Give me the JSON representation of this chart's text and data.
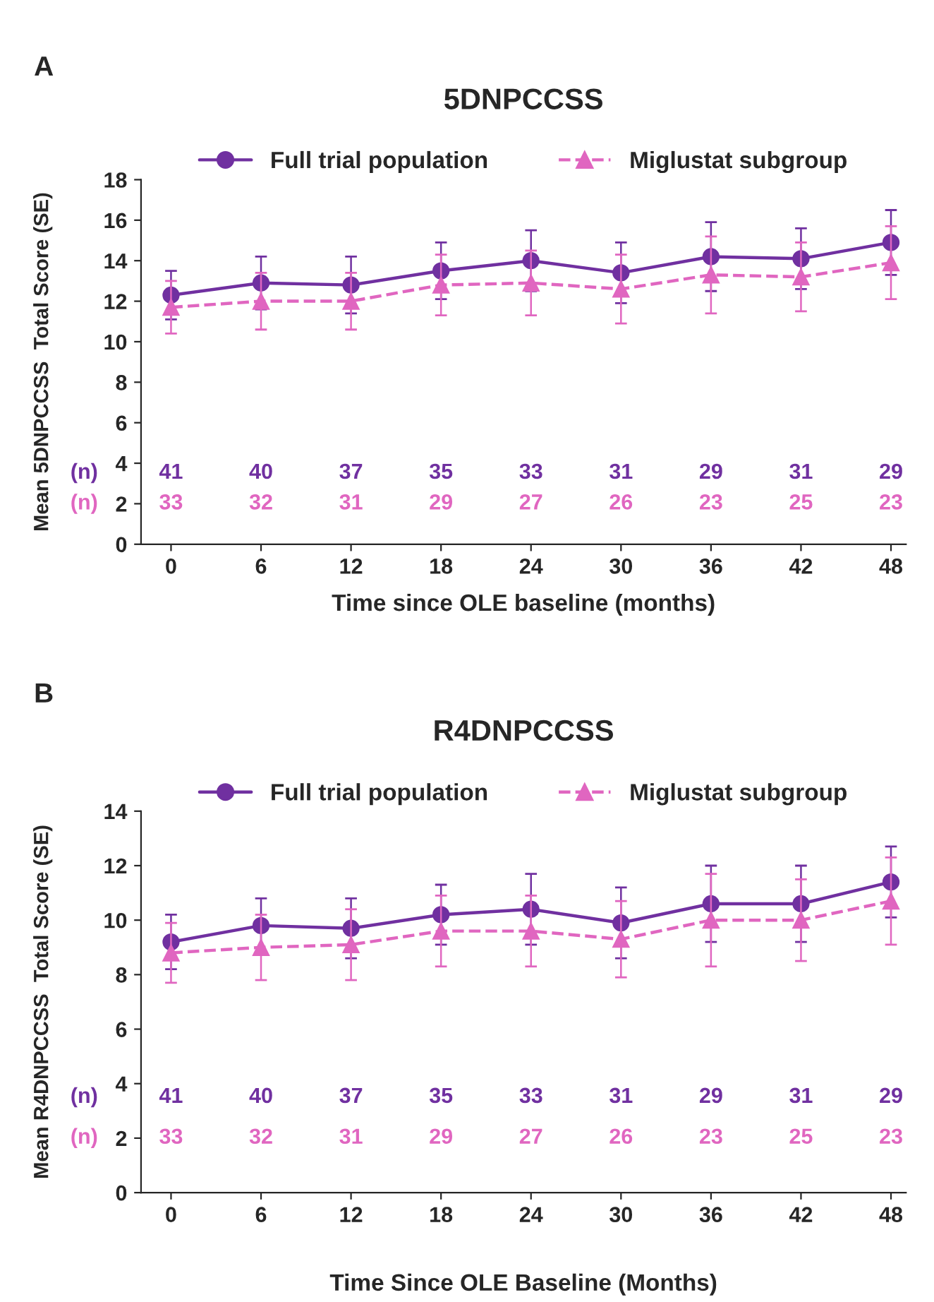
{
  "chart_data": [
    {
      "type": "line",
      "title": "5DNPCCSS",
      "xlabel": "Time since OLE baseline (months)",
      "ylabel": "Mean 5DNPCCSS  Total Score (SE)",
      "x": [
        0,
        6,
        12,
        18,
        24,
        30,
        36,
        42,
        48
      ],
      "series": [
        {
          "name": "Full trial population",
          "color": "#7030a0",
          "marker": "circle",
          "line_style": "solid",
          "values": [
            12.3,
            12.9,
            12.8,
            13.5,
            14.0,
            13.4,
            14.2,
            14.1,
            14.9
          ],
          "errors": [
            1.2,
            1.3,
            1.4,
            1.4,
            1.5,
            1.5,
            1.7,
            1.5,
            1.6
          ]
        },
        {
          "name": "Miglustat subgroup",
          "color": "#e066c0",
          "marker": "triangle",
          "line_style": "dashed",
          "values": [
            11.7,
            12.0,
            12.0,
            12.8,
            12.9,
            12.6,
            13.3,
            13.2,
            13.9
          ],
          "errors": [
            1.3,
            1.4,
            1.4,
            1.5,
            1.6,
            1.7,
            1.9,
            1.7,
            1.8
          ]
        }
      ],
      "xlim": [
        -2,
        49
      ],
      "xticks": [
        0,
        6,
        12,
        18,
        24,
        30,
        36,
        42,
        48
      ],
      "ylim": [
        0,
        18
      ],
      "yticks": [
        0,
        2,
        4,
        6,
        8,
        10,
        12,
        14,
        16,
        18
      ],
      "grid": false,
      "legend": "top",
      "annotations": [
        "A",
        "(n)",
        "41",
        "40",
        "37",
        "35",
        "33",
        "31",
        "29",
        "31",
        "29",
        "(n)",
        "33",
        "32",
        "31",
        "29",
        "27",
        "26",
        "23",
        "25",
        "23"
      ]
    },
    {
      "type": "line",
      "title": "R4DNPCCSS",
      "xlabel": "Time Since OLE Baseline (Months)",
      "ylabel": "Mean R4DNPCCSS  Total Score (SE)",
      "x": [
        0,
        6,
        12,
        18,
        24,
        30,
        36,
        42,
        48
      ],
      "series": [
        {
          "name": "Full trial population",
          "color": "#7030a0",
          "marker": "circle",
          "line_style": "solid",
          "values": [
            9.2,
            9.8,
            9.7,
            10.2,
            10.4,
            9.9,
            10.6,
            10.6,
            11.4
          ],
          "errors": [
            1.0,
            1.0,
            1.1,
            1.1,
            1.3,
            1.3,
            1.4,
            1.4,
            1.3
          ]
        },
        {
          "name": "Miglustat subgroup",
          "color": "#e066c0",
          "marker": "triangle",
          "line_style": "dashed",
          "values": [
            8.8,
            9.0,
            9.1,
            9.6,
            9.6,
            9.3,
            10.0,
            10.0,
            10.7
          ],
          "errors": [
            1.1,
            1.2,
            1.3,
            1.3,
            1.3,
            1.4,
            1.7,
            1.5,
            1.6
          ]
        }
      ],
      "xlim": [
        -2,
        49
      ],
      "xticks": [
        0,
        6,
        12,
        18,
        24,
        30,
        36,
        42,
        48
      ],
      "ylim": [
        0,
        14
      ],
      "yticks": [
        0,
        2,
        4,
        6,
        8,
        10,
        12,
        14
      ],
      "grid": false,
      "legend": "top",
      "annotations": [
        "B",
        "(n)",
        "41",
        "40",
        "37",
        "35",
        "33",
        "31",
        "29",
        "31",
        "29",
        "(n)",
        "33",
        "32",
        "31",
        "29",
        "27",
        "26",
        "23",
        "25",
        "23"
      ]
    }
  ]
}
